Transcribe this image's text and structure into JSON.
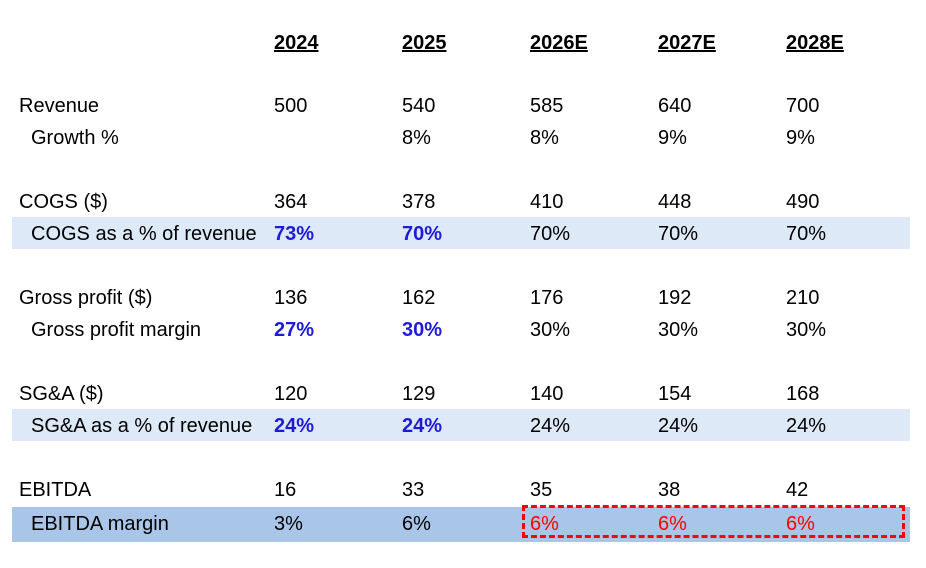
{
  "colors": {
    "hardcoded_input": "#1f1adb",
    "flag": "#ff0000",
    "band_light": "#dde9f7",
    "band_mid": "#a9c6e8"
  },
  "headers": [
    "2024",
    "2025",
    "2026E",
    "2027E",
    "2028E"
  ],
  "rows": [
    {
      "label": "Revenue",
      "values": [
        "500",
        "540",
        "585",
        "640",
        "700"
      ]
    },
    {
      "label": "Growth %",
      "values": [
        "",
        "8%",
        "8%",
        "9%",
        "9%"
      ]
    },
    {
      "label": "COGS ($)",
      "values": [
        "364",
        "378",
        "410",
        "448",
        "490"
      ]
    },
    {
      "label": "COGS as a % of revenue",
      "values": [
        "73%",
        "70%",
        "70%",
        "70%",
        "70%"
      ]
    },
    {
      "label": "Gross profit ($)",
      "values": [
        "136",
        "162",
        "176",
        "192",
        "210"
      ]
    },
    {
      "label": "Gross profit margin",
      "values": [
        "27%",
        "30%",
        "30%",
        "30%",
        "30%"
      ]
    },
    {
      "label": "SG&A ($)",
      "values": [
        "120",
        "129",
        "140",
        "154",
        "168"
      ]
    },
    {
      "label": "SG&A as a % of revenue",
      "values": [
        "24%",
        "24%",
        "24%",
        "24%",
        "24%"
      ]
    },
    {
      "label": "EBITDA",
      "values": [
        "16",
        "33",
        "35",
        "38",
        "42"
      ]
    },
    {
      "label": "EBITDA margin",
      "values": [
        "3%",
        "6%",
        "6%",
        "6%",
        "6%"
      ]
    }
  ]
}
